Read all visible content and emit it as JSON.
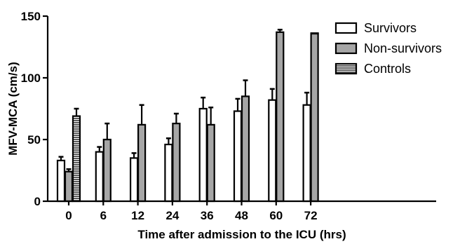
{
  "chart_data": {
    "type": "bar",
    "title": "",
    "xlabel": "Time after admission to the ICU (hrs)",
    "ylabel": "MFV-MCA (cm/s)",
    "ylim": [
      0,
      150
    ],
    "yticks": [
      0,
      50,
      100,
      150
    ],
    "categories": [
      "0",
      "6",
      "12",
      "24",
      "36",
      "48",
      "60",
      "72"
    ],
    "series": [
      {
        "name": "Survivors",
        "style": "white",
        "values": [
          33,
          40,
          35,
          46,
          75,
          73,
          82,
          78
        ],
        "errors": [
          3,
          4,
          4,
          5,
          9,
          10,
          9,
          10
        ]
      },
      {
        "name": "Non-survivors",
        "style": "gray",
        "values": [
          24,
          50,
          62,
          63,
          62,
          85,
          137,
          136
        ],
        "errors": [
          2,
          13,
          16,
          8,
          14,
          13,
          2,
          0
        ]
      },
      {
        "name": "Controls",
        "style": "hatched",
        "values": [
          69,
          null,
          null,
          null,
          null,
          null,
          null,
          null
        ],
        "errors": [
          6,
          null,
          null,
          null,
          null,
          null,
          null,
          null
        ]
      }
    ],
    "legend_position": "right",
    "grid": false,
    "colors": {
      "white": "#ffffff",
      "gray": "#a6a6a6",
      "stroke": "#000000"
    }
  }
}
